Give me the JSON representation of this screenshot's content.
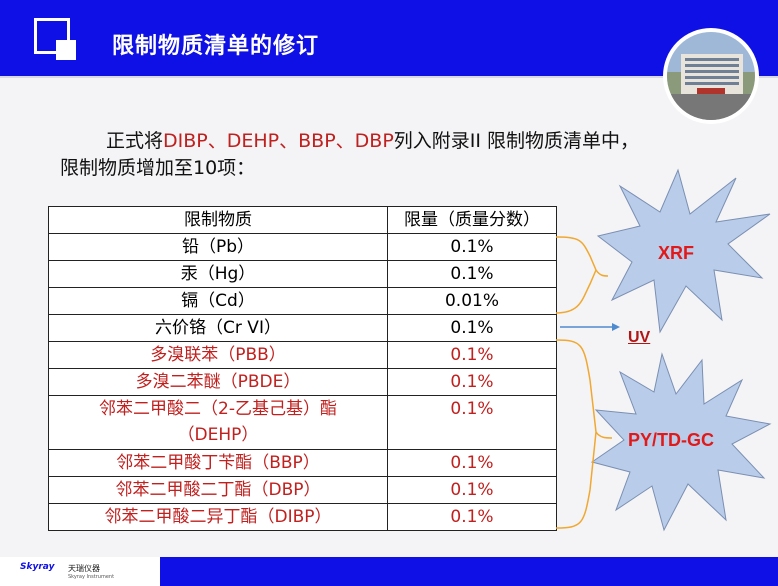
{
  "header": {
    "title": "限制物质清单的修订"
  },
  "intro": {
    "prefix": "正式将",
    "red_items": "DIBP、DEHP、BBP、DBP",
    "suffix": "列入附录II 限制物质清单中，",
    "line2": "限制物质增加至10项："
  },
  "table": {
    "headers": [
      "限制物质",
      "限量（质量分数）"
    ],
    "rows": [
      {
        "substance": "铅（Pb）",
        "limit": "0.1%",
        "red": false
      },
      {
        "substance": "汞（Hg）",
        "limit": "0.1%",
        "red": false
      },
      {
        "substance": "镉（Cd）",
        "limit": "0.01%",
        "red": false
      },
      {
        "substance": "六价铬（Cr VI）",
        "limit": "0.1%",
        "red": false
      },
      {
        "substance": "多溴联苯（PBB）",
        "limit": "0.1%",
        "red": true
      },
      {
        "substance": "多溴二苯醚（PBDE）",
        "limit": "0.1%",
        "red": true
      },
      {
        "substance": "邻苯二甲酸二（2-乙基己基）酯（DEHP）",
        "limit": "0.1%",
        "red": true
      },
      {
        "substance": "邻苯二甲酸丁苄酯（BBP）",
        "limit": "0.1%",
        "red": true
      },
      {
        "substance": "邻苯二甲酸二丁酯（DBP）",
        "limit": "0.1%",
        "red": true
      },
      {
        "substance": "邻苯二甲酸二异丁酯（DIBP）",
        "limit": "0.1%",
        "red": true
      }
    ]
  },
  "methods": {
    "xrf": "XRF",
    "uv": "UV",
    "pytd": "PY/TD-GC"
  },
  "footer": {
    "brand": "Skyray",
    "brand_cn": "天瑞仪器",
    "brand_sub": "Skyray Instrument"
  },
  "colors": {
    "accent": "#0f10e6",
    "red_text": "#c0201e",
    "star_fill": "#b9cdea",
    "bracket": "#f0a830"
  }
}
